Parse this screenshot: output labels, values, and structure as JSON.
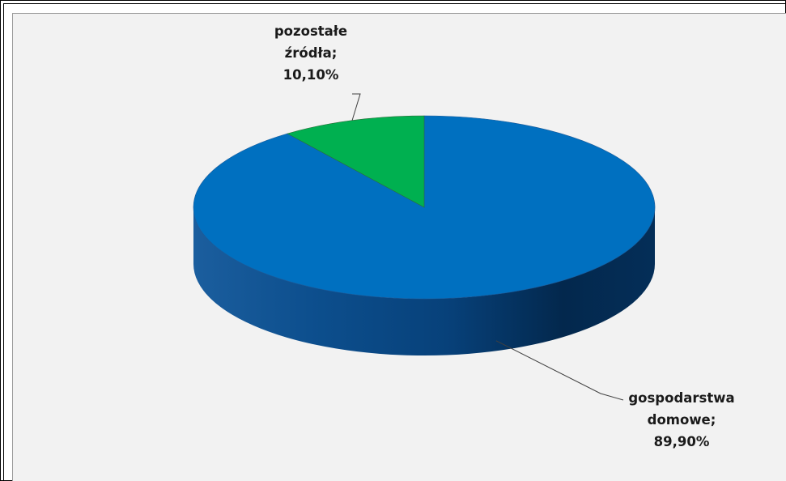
{
  "chart_data": {
    "type": "pie",
    "style": "3d",
    "slices": [
      {
        "label": "gospodarstwa domowe",
        "value": 89.9,
        "color": "#0070c0",
        "data_label": [
          "gospodarstwa",
          "domowe;",
          "89,90%"
        ]
      },
      {
        "label": "pozostałe źródła",
        "value": 10.1,
        "color": "#00b050",
        "data_label": [
          "pozostałe",
          "źródła;",
          "10,10%"
        ]
      }
    ],
    "legend": "none"
  }
}
